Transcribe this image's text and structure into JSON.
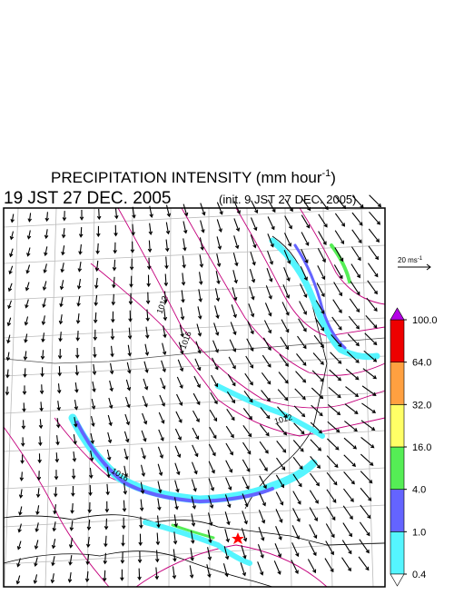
{
  "title": {
    "text": "PRECIPITATION INTENSITY (mm hour",
    "superscript": "-1",
    "close": ")"
  },
  "valid_time": "19 JST 27 DEC. 2005",
  "init_time": "(init. 9 JST 27 DEC. 2005)",
  "vector_scale": {
    "text": "20 ms",
    "superscript": "-1"
  },
  "colorbar": {
    "levels": [
      {
        "value": 0.4,
        "label": "0.4"
      },
      {
        "value": 1,
        "label": "1.0"
      },
      {
        "value": 4,
        "label": "4.0"
      },
      {
        "value": 16,
        "label": "16.0"
      },
      {
        "value": 32,
        "label": "32.0"
      },
      {
        "value": 64,
        "label": "64.0"
      },
      {
        "value": 100,
        "label": "100.0"
      }
    ],
    "colors": [
      "#55f5ff",
      "#6464ff",
      "#55ee55",
      "#ffff66",
      "#ffa040",
      "#ee0000"
    ],
    "under_color": "#ffffff",
    "over_color": "#b400e6"
  },
  "contour_labels": [
    "1012",
    "1016",
    "1012",
    "1016"
  ]
}
